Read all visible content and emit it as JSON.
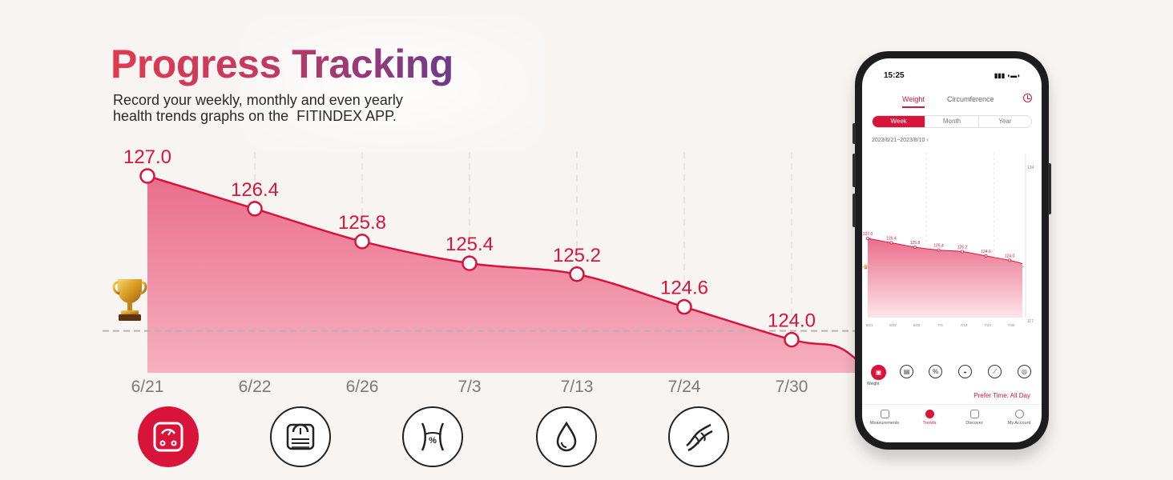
{
  "header": {
    "title": "Progress Tracking",
    "subtitle_lines": [
      "Record your weekly, monthly and even yearly",
      "health trends graphs on the  FITINDEX APP."
    ]
  },
  "colors": {
    "accent": "#d9143a",
    "area_top": "#ea6e8b",
    "area_bottom": "#f6b0c1",
    "goal_line": "#b5b5b5"
  },
  "icons": {
    "goal": "trophy-icon",
    "metrics": [
      "weight-scale-icon",
      "body-scale-icon",
      "waist-percent-icon",
      "water-drop-icon",
      "muscle-icon"
    ]
  },
  "chart_data": [
    {
      "type": "area",
      "categories": [
        "6/21",
        "6/22",
        "6/26",
        "7/3",
        "7/13",
        "7/24",
        "7/30"
      ],
      "values": [
        127.0,
        126.4,
        125.8,
        125.4,
        125.2,
        124.6,
        124.0
      ],
      "value_labels": [
        "127.0",
        "126.4",
        "125.8",
        "125.4",
        "125.2",
        "124.6",
        "124.0"
      ],
      "goal": 124.0,
      "grid": "vertical dashed",
      "legend": "none"
    },
    {
      "type": "area",
      "categories": [
        "6/21",
        "6/22",
        "6/26",
        "7/3",
        "7/13",
        "7/24",
        "7/30"
      ],
      "values": [
        127.0,
        126.4,
        125.8,
        125.4,
        125.2,
        124.6,
        124.0
      ],
      "value_labels": [
        "127.0",
        "126.4",
        "125.8",
        "125.4",
        "125.2",
        "124.6",
        "124.0"
      ],
      "axis_top_label": "134",
      "axis_bottom_label": "117",
      "ylim": [
        117,
        134
      ]
    }
  ],
  "phone": {
    "status_time": "15:25",
    "tabs": [
      "Weight",
      "Circumference"
    ],
    "periods": [
      "Week",
      "Month",
      "Year"
    ],
    "active_period": "Week",
    "date_range": "2023/6/21~2023/8/10",
    "first_metric_label": "Weight",
    "prefer_label": "Prefer Time:",
    "prefer_value": "All Day",
    "nav": [
      "Measurements",
      "Trends",
      "Discover",
      "My Account"
    ],
    "active_nav": "Trends"
  }
}
